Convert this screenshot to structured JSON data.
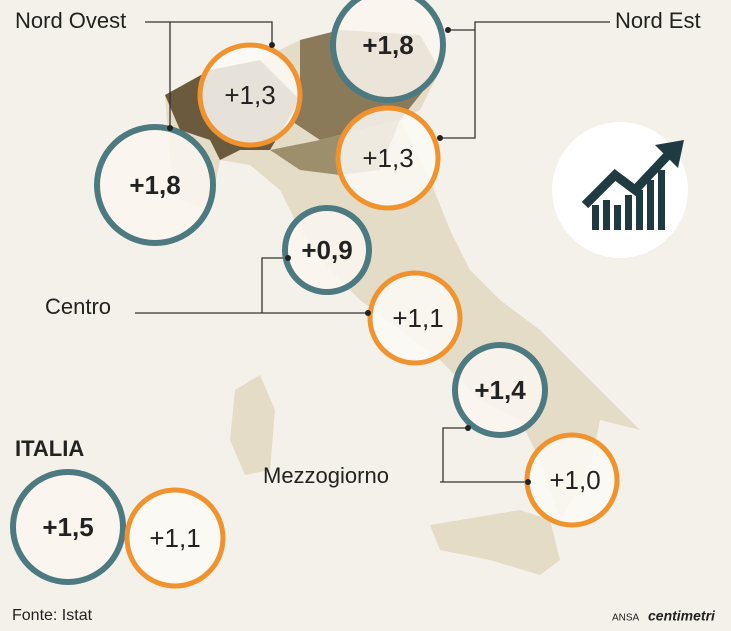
{
  "regions": [
    {
      "name": "Nord Ovest",
      "values": [
        "+1,8",
        "+1,3"
      ]
    },
    {
      "name": "Nord Est",
      "values": [
        "+1,8",
        "+1,3"
      ]
    },
    {
      "name": "Centro",
      "values": [
        "+0,9",
        "+1,1"
      ]
    },
    {
      "name": "Mezzogiorno",
      "values": [
        "+1,4",
        "+1,0"
      ]
    }
  ],
  "italia": {
    "label": "ITALIA",
    "values": [
      "+1,5",
      "+1,1"
    ]
  },
  "footer": {
    "source": "Fonte: Istat",
    "agency": "ANSA",
    "brand": "centimetri"
  }
}
